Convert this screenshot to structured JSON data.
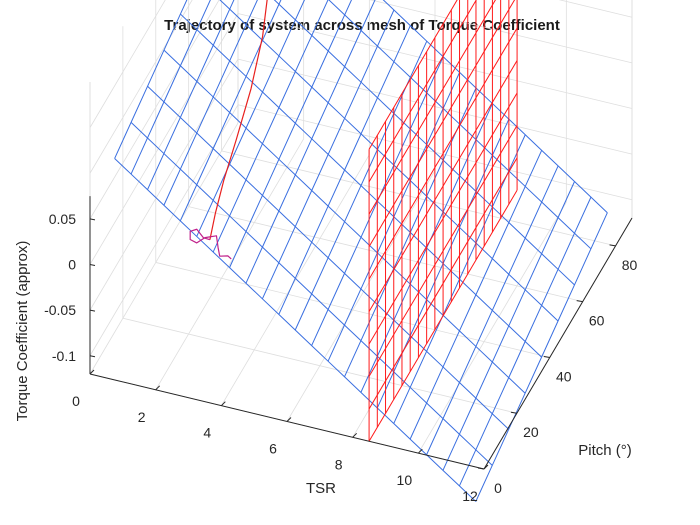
{
  "chart_data": {
    "type": "surface",
    "title": "Trajectory of system across mesh of Torque Coefficient",
    "xlabel": "TSR",
    "ylabel": "Pitch (°)",
    "zlabel": "Torque Coefficient (approx)",
    "xlim": [
      0,
      12
    ],
    "ylim": [
      0,
      90
    ],
    "zlim": [
      -0.12,
      0.2
    ],
    "x_ticks": [
      "0",
      "2",
      "4",
      "6",
      "8",
      "10",
      "12"
    ],
    "y_ticks": [
      "0",
      "20",
      "40",
      "60",
      "80"
    ],
    "z_ticks": [
      "0.05",
      "0",
      "-0.05",
      "-0.1"
    ],
    "grid": true,
    "series": [
      {
        "kind": "mesh",
        "color": "#3a6fe0",
        "x_grid": [
          0.5,
          1.0,
          1.5,
          2.0,
          2.5,
          3.0,
          3.5,
          4.0,
          4.5,
          5.0,
          5.5,
          6.0,
          6.5,
          7.0,
          7.5,
          8.0,
          8.5,
          9.0,
          9.5,
          10.0,
          10.5,
          11.0,
          11.5
        ],
        "y_grid": [
          5,
          15,
          25,
          35,
          45,
          55,
          65,
          75,
          85
        ],
        "z_description": "plane rising with decreasing TSR and decreasing pitch"
      },
      {
        "kind": "vertical-wall",
        "color": "#ff1a1a",
        "x": 8.5,
        "y_range": [
          0,
          90
        ],
        "z_range": [
          -0.12,
          0.2
        ]
      },
      {
        "kind": "trajectory",
        "color": "#e8201e",
        "x": [
          0.2,
          1.0,
          1.8,
          2.3,
          2.6,
          2.75,
          2.8,
          2.82,
          2.82,
          2.85
        ],
        "y": [
          85,
          81,
          73,
          63,
          53,
          43,
          33,
          25,
          20,
          16
        ],
        "z": [
          0.195,
          0.182,
          0.16,
          0.135,
          0.11,
          0.085,
          0.06,
          0.04,
          0.02,
          0.003
        ]
      },
      {
        "kind": "trajectory",
        "color": "#c0208a",
        "x": [
          2.85,
          2.6,
          2.35,
          2.25,
          2.35,
          2.55,
          2.7,
          2.95,
          3.15,
          3.3,
          3.5,
          3.65
        ],
        "y": [
          16,
          17,
          18,
          16,
          14,
          14,
          16,
          18,
          15,
          13,
          14,
          13
        ],
        "z": [
          0.003,
          0.0,
          0.004,
          0.007,
          0.005,
          0.003,
          0.004,
          0.002,
          0.0,
          -0.002,
          -0.003,
          -0.002
        ]
      }
    ]
  }
}
